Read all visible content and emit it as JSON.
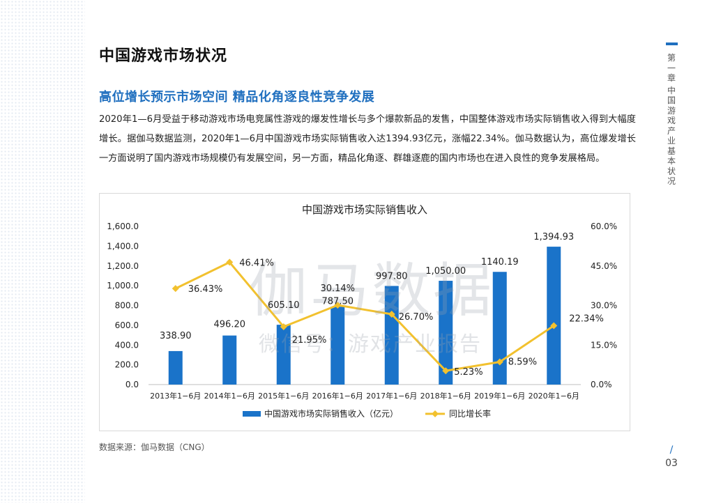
{
  "page": {
    "title": "中国游戏市场状况",
    "section_title": "高位增长预示市场空间  精品化角逐良性竞争发展",
    "body": "2020年1—6月受益于移动游戏市场电竞属性游戏的爆发性增长与多个爆款新品的发售，中国整体游戏市场实际销售收入得到大幅度增长。据伽马数据监测，2020年1—6月中国游戏市场实际销售收入达1394.93亿元，涨幅22.34%。伽马数据认为，高位爆发增长一方面说明了国内游戏市场规模仍有发展空间，另一方面，精品化角逐、群雄逐鹿的国内市场也在进入良性的竞争发展格局。",
    "source": "数据来源：伽马数据（CNG）",
    "chapter_label": "第一章",
    "chapter_title": "中国游戏产业基本状况",
    "page_slash": "/",
    "page_number": "03"
  },
  "watermark": {
    "line1": "伽马数据",
    "line2": "微信号：游戏产业报告"
  },
  "colors": {
    "bar": "#1a73c9",
    "line": "#f2c12e",
    "accent": "#1f6fbf"
  },
  "chart_data": {
    "type": "bar",
    "title": "中国游戏市场实际销售收入",
    "categories": [
      "2013年1−6月",
      "2014年1−6月",
      "2015年1−6月",
      "2016年1−6月",
      "2017年1−6月",
      "2018年1−6月",
      "2019年1−6月",
      "2020年1−6月"
    ],
    "series": [
      {
        "name": "中国游戏市场实际销售收入（亿元）",
        "type": "bar",
        "axis": "left",
        "values": [
          338.9,
          496.2,
          605.1,
          787.5,
          997.8,
          1050.0,
          1140.19,
          1394.93
        ],
        "labels": [
          "338.90",
          "496.20",
          "605.10",
          "787.50",
          "997.80",
          "1,050.00",
          "1140.19",
          "1,394.93"
        ]
      },
      {
        "name": "同比增长率",
        "type": "line",
        "axis": "right",
        "values": [
          36.43,
          46.41,
          21.95,
          30.14,
          26.7,
          5.23,
          8.59,
          22.34
        ],
        "labels": [
          "36.43%",
          "46.41%",
          "21.95%",
          "30.14%",
          "26.70%",
          "5.23%",
          "8.59%",
          "22.34%"
        ]
      }
    ],
    "y_left": {
      "min": 0,
      "max": 1600,
      "ticks": [
        "0.0",
        "200.0",
        "400.0",
        "600.0",
        "800.0",
        "1,000.0",
        "1,200.0",
        "1,400.0",
        "1,600.0"
      ]
    },
    "y_right": {
      "min": 0,
      "max": 60,
      "ticks": [
        "0.0%",
        "15.0%",
        "30.0%",
        "45.0%",
        "60.0%"
      ]
    },
    "grid": false,
    "legend": "bottom"
  }
}
